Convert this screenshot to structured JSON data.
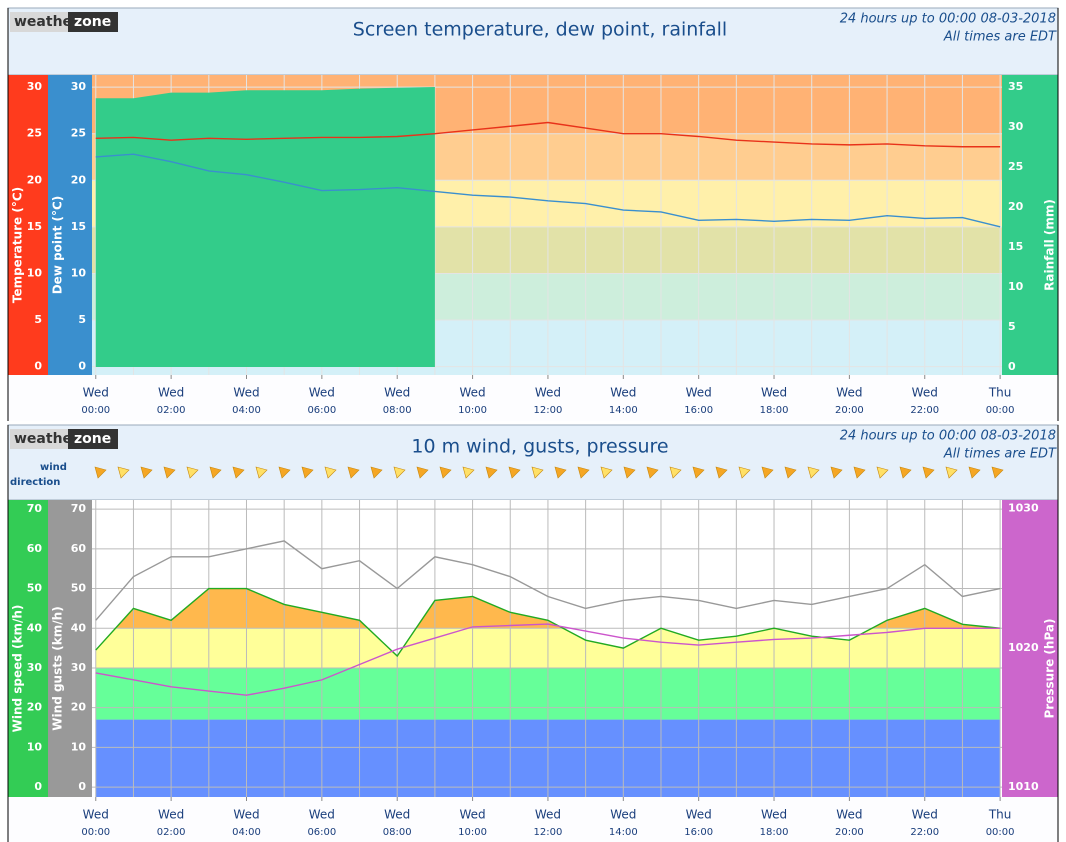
{
  "logo": [
    "weather",
    "zone"
  ],
  "chart_data": [
    {
      "type": "line",
      "title": "Screen temperature, dew point, rainfall",
      "subtitle": [
        "24 hours up to 00:00 08-03-2018",
        "All times are EDT"
      ],
      "x": [
        0,
        1,
        2,
        3,
        4,
        5,
        6,
        7,
        8,
        9,
        10,
        11,
        12,
        13,
        14,
        15,
        16,
        17,
        18,
        19,
        20,
        21,
        22,
        23,
        24
      ],
      "xlim": [
        -0.1,
        24.05
      ],
      "xticks": [
        {
          "value": 0,
          "label": "00:00",
          "day": "Wed"
        },
        {
          "value": 2,
          "label": "02:00",
          "day": "Wed"
        },
        {
          "value": 4,
          "label": "04:00",
          "day": "Wed"
        },
        {
          "value": 6,
          "label": "06:00",
          "day": "Wed"
        },
        {
          "value": 8,
          "label": "08:00",
          "day": "Wed"
        },
        {
          "value": 10,
          "label": "10:00",
          "day": "Wed"
        },
        {
          "value": 12,
          "label": "12:00",
          "day": "Wed"
        },
        {
          "value": 14,
          "label": "14:00",
          "day": "Wed"
        },
        {
          "value": 16,
          "label": "16:00",
          "day": "Wed"
        },
        {
          "value": 18,
          "label": "18:00",
          "day": "Wed"
        },
        {
          "value": 20,
          "label": "20:00",
          "day": "Wed"
        },
        {
          "value": 22,
          "label": "22:00",
          "day": "Wed"
        },
        {
          "value": 24,
          "label": "00:00",
          "day": "Thu"
        }
      ],
      "axes": [
        {
          "label": "Temperature (°C)",
          "lim": [
            -0.9,
            31.3
          ],
          "ticks": [
            0,
            5,
            10,
            15,
            20,
            25,
            30
          ],
          "color": "#ff3b1d",
          "side": "left"
        },
        {
          "label": "Dew point (°C)",
          "lim": [
            -0.9,
            31.3
          ],
          "ticks": [
            0,
            5,
            10,
            15,
            20,
            25,
            30
          ],
          "color": "#3a8fce",
          "side": "left"
        },
        {
          "label": "Rainfall (mm)",
          "lim": [
            -1,
            36.5
          ],
          "ticks": [
            0,
            5,
            10,
            15,
            20,
            25,
            30,
            35
          ],
          "color": "#33cc8a",
          "side": "right"
        }
      ],
      "background": "#ffffff",
      "grid_color": "#e4e4e4",
      "bands": [
        {
          "from": -0.9,
          "to": 5,
          "color": "#d4f0f8"
        },
        {
          "from": 5,
          "to": 10,
          "color": "#cdeedc"
        },
        {
          "from": 10,
          "to": 15,
          "color": "#e2e2a8"
        },
        {
          "from": 15,
          "to": 20,
          "color": "#fff0aa"
        },
        {
          "from": 20,
          "to": 25,
          "color": "#ffcd90"
        },
        {
          "from": 25,
          "to": 31.3,
          "color": "#ffb274"
        }
      ],
      "series": [
        {
          "axis": 2,
          "kind": "area",
          "color": "#33cc8a",
          "values": [
            33.6,
            33.6,
            34.3,
            34.3,
            34.6,
            34.6,
            34.6,
            34.8,
            34.9,
            35.0,
            null,
            null,
            null,
            null,
            null,
            null,
            null,
            null,
            null,
            null,
            null,
            null,
            null,
            null,
            null
          ]
        },
        {
          "axis": 0,
          "kind": "line",
          "color": "#e8321a",
          "values": [
            24.5,
            24.6,
            24.3,
            24.5,
            24.4,
            24.5,
            24.6,
            24.6,
            24.7,
            25.0,
            25.4,
            25.8,
            26.2,
            25.6,
            25.0,
            25.0,
            24.7,
            24.3,
            24.1,
            23.9,
            23.8,
            23.9,
            23.7,
            23.6,
            23.6
          ]
        },
        {
          "axis": 1,
          "kind": "line",
          "color": "#3a8fce",
          "values": [
            22.5,
            22.8,
            22.0,
            21.0,
            20.6,
            19.8,
            18.9,
            19.0,
            19.2,
            18.8,
            18.4,
            18.2,
            17.8,
            17.5,
            16.8,
            16.6,
            15.7,
            15.8,
            15.6,
            15.8,
            15.7,
            16.2,
            15.9,
            16.0,
            15.0
          ]
        }
      ]
    },
    {
      "type": "line",
      "title": "10 m wind, gusts, pressure",
      "subtitle": [
        "24 hours up to 00:00 08-03-2018",
        "All times are EDT"
      ],
      "wind_direction_label": [
        "wind",
        "direction"
      ],
      "x": [
        0,
        1,
        2,
        3,
        4,
        5,
        6,
        7,
        8,
        9,
        10,
        11,
        12,
        13,
        14,
        15,
        16,
        17,
        18,
        19,
        20,
        21,
        22,
        23,
        24
      ],
      "xlim": [
        -0.1,
        24.05
      ],
      "xticks": [
        {
          "value": 0,
          "label": "00:00",
          "day": "Wed"
        },
        {
          "value": 2,
          "label": "02:00",
          "day": "Wed"
        },
        {
          "value": 4,
          "label": "04:00",
          "day": "Wed"
        },
        {
          "value": 6,
          "label": "06:00",
          "day": "Wed"
        },
        {
          "value": 8,
          "label": "08:00",
          "day": "Wed"
        },
        {
          "value": 10,
          "label": "10:00",
          "day": "Wed"
        },
        {
          "value": 12,
          "label": "12:00",
          "day": "Wed"
        },
        {
          "value": 14,
          "label": "14:00",
          "day": "Wed"
        },
        {
          "value": 16,
          "label": "16:00",
          "day": "Wed"
        },
        {
          "value": 18,
          "label": "18:00",
          "day": "Wed"
        },
        {
          "value": 20,
          "label": "20:00",
          "day": "Wed"
        },
        {
          "value": 22,
          "label": "22:00",
          "day": "Wed"
        },
        {
          "value": 24,
          "label": "00:00",
          "day": "Thu"
        }
      ],
      "axes": [
        {
          "label": "Wind speed (km/h)",
          "lim": [
            -2.5,
            72.3
          ],
          "ticks": [
            0,
            10,
            20,
            30,
            40,
            50,
            60,
            70
          ],
          "color": "#33cc55",
          "side": "left"
        },
        {
          "label": "Wind gusts (km/h)",
          "lim": [
            -2.5,
            72.3
          ],
          "ticks": [
            0,
            10,
            20,
            30,
            40,
            50,
            60,
            70
          ],
          "color": "#999999",
          "side": "left"
        },
        {
          "label": "Pressure (hPa)",
          "lim": [
            1009.3,
            1030.6
          ],
          "ticks": [
            1010,
            1020,
            1030
          ],
          "color": "#cc66cc",
          "side": "right"
        }
      ],
      "background": "#ffffff",
      "grid_color": "#bbbbbb",
      "band_series": 0,
      "bands": [
        {
          "from": -2.5,
          "to": 17,
          "color": "#6690ff"
        },
        {
          "from": 17,
          "to": 30,
          "color": "#66ff99"
        },
        {
          "from": 30,
          "to": 40,
          "color": "#ffff99"
        },
        {
          "from": 40,
          "to": 72.3,
          "color": "#ffb84d"
        }
      ],
      "series": [
        {
          "axis": 0,
          "kind": "line",
          "color": "#22aa22",
          "values": [
            34.5,
            45,
            42,
            50,
            50,
            46,
            44,
            42,
            33,
            47,
            48,
            44,
            42,
            37,
            35,
            40,
            37,
            38,
            40,
            38,
            37,
            42,
            45,
            41,
            40
          ]
        },
        {
          "axis": 1,
          "kind": "line",
          "color": "#999999",
          "values": [
            42,
            53,
            58,
            58,
            60,
            62,
            55,
            57,
            50,
            58,
            56,
            53,
            48,
            45,
            47,
            48,
            47,
            45,
            47,
            46,
            48,
            50,
            56,
            48,
            50
          ]
        },
        {
          "axis": 2,
          "kind": "line",
          "color": "#cc55cc",
          "values": [
            1018.2,
            1017.7,
            1017.2,
            1016.9,
            1016.6,
            1017.1,
            1017.7,
            1018.8,
            1019.9,
            1020.7,
            1021.5,
            1021.6,
            1021.7,
            1021.2,
            1020.7,
            1020.4,
            1020.2,
            1020.4,
            1020.6,
            1020.7,
            1020.9,
            1021.1,
            1021.4,
            1021.4,
            1021.4
          ]
        }
      ]
    }
  ]
}
